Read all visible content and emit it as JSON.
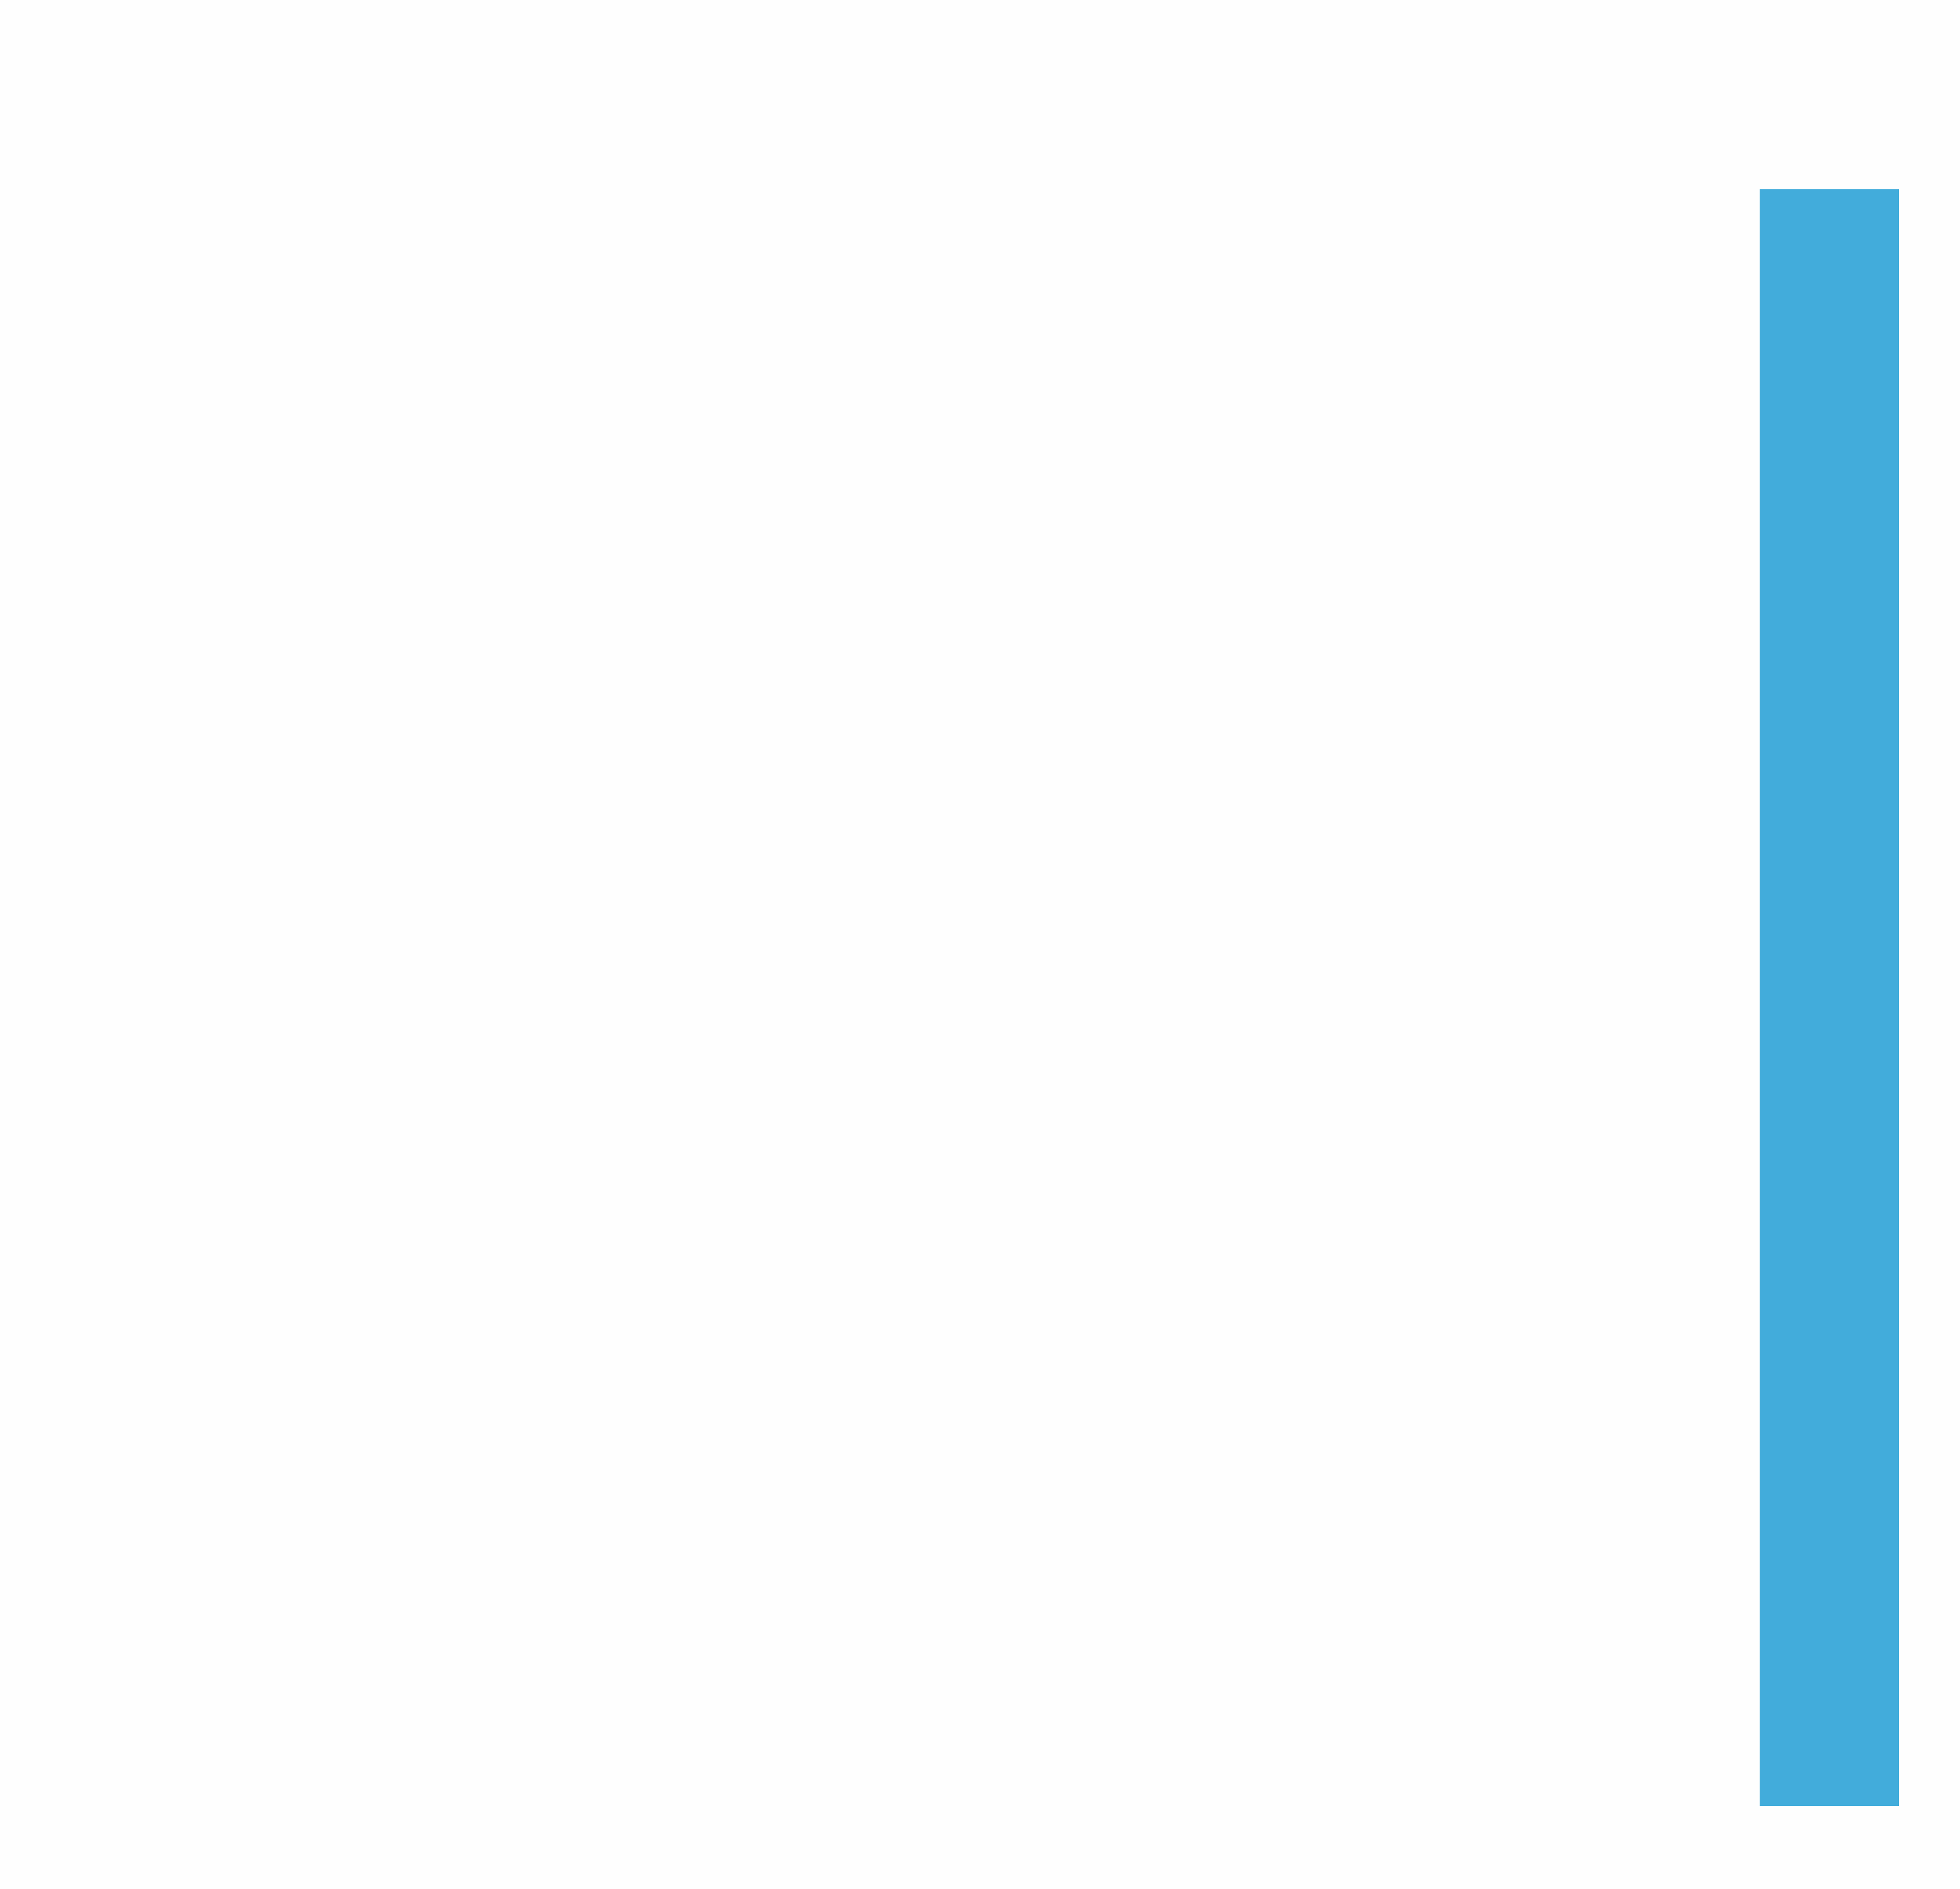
{
  "colors": {
    "background": "#fefefe",
    "bar": "#42acdb"
  }
}
